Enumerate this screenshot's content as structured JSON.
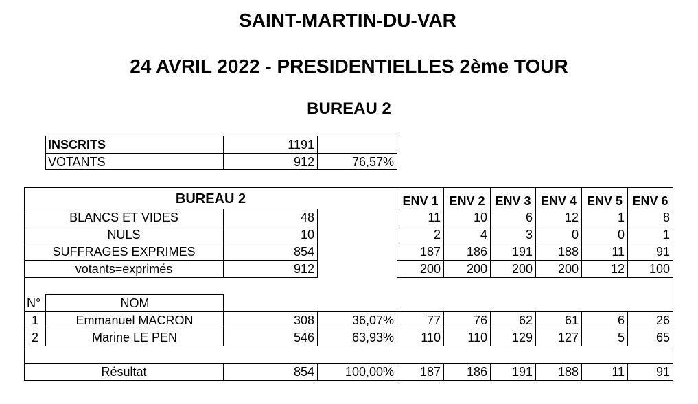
{
  "header": {
    "commune": "SAINT-MARTIN-DU-VAR",
    "election": "24 AVRIL 2022 - PRESIDENTIELLES 2ème  TOUR",
    "bureau": "BUREAU 2"
  },
  "participation": {
    "inscrits_label": "INSCRITS",
    "inscrits_value": "1191",
    "votants_label": "VOTANTS",
    "votants_value": "912",
    "votants_pct": "76,57%"
  },
  "results": {
    "bureau_label": "BUREAU 2",
    "env_headers": [
      "ENV 1",
      "ENV 2",
      "ENV 3",
      "ENV 4",
      "ENV 5",
      "ENV 6"
    ],
    "stats": [
      {
        "label": "BLANCS ET VIDES",
        "total": "48",
        "env": [
          "11",
          "10",
          "6",
          "12",
          "1",
          "8"
        ]
      },
      {
        "label": "NULS",
        "total": "10",
        "env": [
          "2",
          "4",
          "3",
          "0",
          "0",
          "1"
        ]
      },
      {
        "label": "SUFFRAGES EXPRIMES",
        "total": "854",
        "env": [
          "187",
          "186",
          "191",
          "188",
          "11",
          "91"
        ]
      },
      {
        "label": "votants=exprimés",
        "total": "912",
        "env": [
          "200",
          "200",
          "200",
          "200",
          "12",
          "100"
        ]
      }
    ],
    "num_header": "N°",
    "name_header": "NOM",
    "candidates": [
      {
        "num": "1",
        "name": "Emmanuel MACRON",
        "votes": "308",
        "pct": "36,07%",
        "env": [
          "77",
          "76",
          "62",
          "61",
          "6",
          "26"
        ]
      },
      {
        "num": "2",
        "name": "Marine LE PEN",
        "votes": "546",
        "pct": "63,93%",
        "env": [
          "110",
          "110",
          "129",
          "127",
          "5",
          "65"
        ]
      }
    ],
    "result_row": {
      "label": "Résultat",
      "votes": "854",
      "pct": "100,00%",
      "env": [
        "187",
        "186",
        "191",
        "188",
        "11",
        "91"
      ]
    }
  }
}
